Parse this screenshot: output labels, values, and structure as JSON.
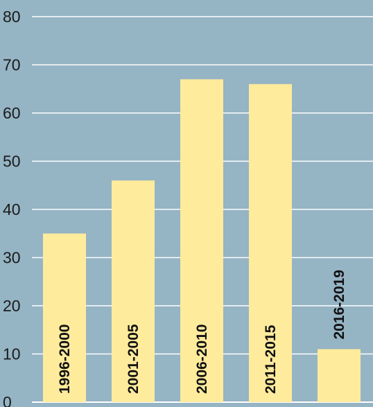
{
  "chart_data": {
    "type": "bar",
    "title": "",
    "xlabel": "",
    "ylabel": "",
    "categories": [
      "1996-2000",
      "2001-2005",
      "2006-2010",
      "2011-2015",
      "2016-2019"
    ],
    "values": [
      35,
      46,
      67,
      66,
      11
    ],
    "ylim": [
      0,
      80
    ],
    "yticks": [
      0,
      10,
      20,
      30,
      40,
      50,
      60,
      70,
      80
    ],
    "grid": true,
    "legend": "none",
    "category_label_placement": "vertical, inside bar"
  },
  "colors": {
    "background": "#95b4c4",
    "bar": "#ffeb9c",
    "gridline": "#ffffff",
    "text": "#111111"
  }
}
